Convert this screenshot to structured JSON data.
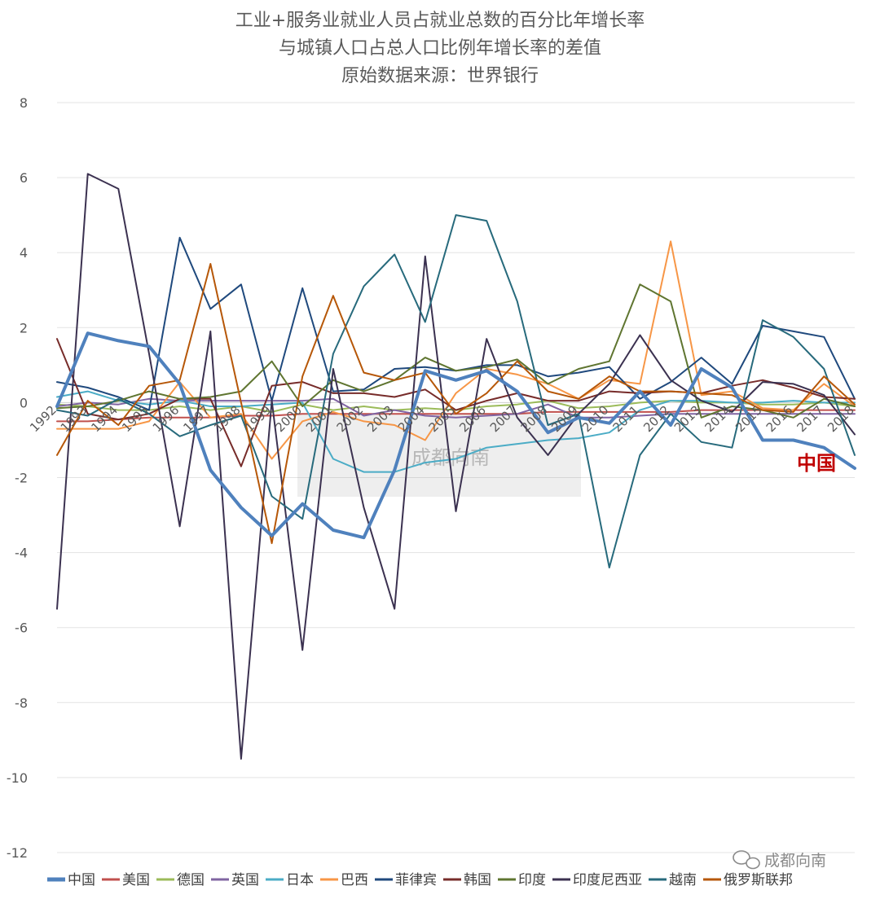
{
  "chart_data": {
    "type": "line",
    "title": [
      "工业+服务业就业人员占就业总数的百分比年增长率",
      "与城镇人口占总人口比例年增长率的差值",
      "原始数据来源：世界银行"
    ],
    "x": [
      "1992",
      "1993",
      "1994",
      "1995",
      "1996",
      "1997",
      "1998",
      "1999",
      "2000",
      "2001",
      "2002",
      "2003",
      "2004",
      "2005",
      "2006",
      "2007",
      "2008",
      "2009",
      "2010",
      "2011",
      "2012",
      "2013",
      "2014",
      "2015",
      "2016",
      "2017",
      "2018"
    ],
    "ylim": [
      -12,
      8
    ],
    "yticks": [
      -12,
      -10,
      -8,
      -6,
      -4,
      -2,
      0,
      2,
      4,
      6,
      8
    ],
    "grid": true,
    "legend_position": "bottom",
    "series": [
      {
        "name": "中国",
        "color": "#4f81bd",
        "width": 4,
        "values": [
          -0.1,
          1.85,
          1.65,
          1.5,
          0.5,
          -1.8,
          -2.8,
          -3.55,
          -2.7,
          -3.4,
          -3.6,
          -1.8,
          0.85,
          0.6,
          0.85,
          0.3,
          -0.8,
          -0.4,
          -0.55,
          0.3,
          -0.6,
          0.9,
          0.4,
          -1.0,
          -1.0,
          -1.2,
          -1.75
        ]
      },
      {
        "name": "美国",
        "color": "#c0504d",
        "width": 2,
        "values": [
          -0.5,
          -0.5,
          -0.45,
          -0.4,
          -0.4,
          -0.4,
          -0.35,
          -0.35,
          -0.3,
          -0.3,
          -0.3,
          -0.3,
          -0.3,
          -0.3,
          -0.3,
          -0.3,
          -0.25,
          -0.25,
          -0.25,
          -0.25,
          -0.25,
          -0.2,
          -0.2,
          -0.2,
          -0.2,
          -0.2,
          -0.2
        ]
      },
      {
        "name": "德国",
        "color": "#9bbb59",
        "width": 2,
        "values": [
          -0.05,
          -0.1,
          -0.2,
          -0.2,
          -0.1,
          -0.2,
          -0.1,
          -0.25,
          -0.05,
          -0.2,
          -0.1,
          -0.2,
          -0.15,
          -0.2,
          -0.1,
          -0.05,
          0.05,
          -0.15,
          -0.1,
          0.0,
          0.05,
          0.0,
          0.0,
          -0.05,
          -0.05,
          0.0,
          -0.1
        ]
      },
      {
        "name": "英国",
        "color": "#8064a2",
        "width": 2,
        "values": [
          -0.1,
          0.0,
          -0.05,
          0.1,
          0.05,
          0.05,
          0.05,
          0.05,
          0.05,
          0.1,
          -0.35,
          -0.2,
          -0.35,
          -0.4,
          -0.35,
          -0.3,
          -0.05,
          -0.4,
          -0.4,
          -0.35,
          -0.3,
          -0.3,
          -0.3,
          -0.3,
          -0.3,
          -0.3,
          -0.3
        ]
      },
      {
        "name": "日本",
        "color": "#4bacc6",
        "width": 2,
        "values": [
          0.15,
          0.3,
          0.05,
          -0.05,
          0.05,
          -0.1,
          -0.1,
          -0.05,
          0.0,
          -1.5,
          -1.85,
          -1.85,
          -1.6,
          -1.5,
          -1.2,
          -1.1,
          -1.0,
          -0.95,
          -0.8,
          -0.2,
          0.05,
          0.05,
          0.0,
          0.0,
          0.05,
          0.0,
          0.0
        ]
      },
      {
        "name": "巴西",
        "color": "#f79646",
        "width": 2,
        "values": [
          -0.7,
          -0.7,
          -0.7,
          -0.5,
          0.55,
          -0.4,
          -0.3,
          -1.5,
          -0.5,
          -0.25,
          -0.5,
          -0.6,
          -1.0,
          0.25,
          0.9,
          0.75,
          0.5,
          0.1,
          0.6,
          0.5,
          4.3,
          0.2,
          0.3,
          -0.15,
          -0.2,
          0.5,
          -0.1
        ]
      },
      {
        "name": "菲律宾",
        "color": "#1f497d",
        "width": 2,
        "values": [
          0.55,
          0.4,
          0.15,
          -0.2,
          4.4,
          2.5,
          3.15,
          0.05,
          3.05,
          0.3,
          0.35,
          0.9,
          0.95,
          0.85,
          1.0,
          1.0,
          0.7,
          0.8,
          0.95,
          0.1,
          0.55,
          1.2,
          0.5,
          2.05,
          1.9,
          1.75,
          0.1
        ]
      },
      {
        "name": "韩国",
        "color": "#772c2a",
        "width": 2,
        "values": [
          1.7,
          -0.3,
          -0.45,
          -0.3,
          0.1,
          0.1,
          -1.7,
          0.45,
          0.55,
          0.25,
          0.25,
          0.15,
          0.35,
          -0.2,
          0.05,
          0.25,
          0.05,
          0.05,
          0.3,
          0.25,
          0.3,
          0.25,
          0.45,
          0.6,
          0.4,
          0.15,
          0.1
        ]
      },
      {
        "name": "印度",
        "color": "#5f7530",
        "width": 2,
        "values": [
          -0.15,
          -0.1,
          0.05,
          0.3,
          0.1,
          0.15,
          0.3,
          1.1,
          -0.1,
          0.6,
          0.3,
          0.6,
          1.2,
          0.85,
          0.95,
          1.15,
          0.5,
          0.9,
          1.1,
          3.15,
          2.7,
          -0.4,
          -0.1,
          -0.2,
          -0.4,
          0.1,
          -0.1
        ]
      },
      {
        "name": "印度尼西亚",
        "color": "#3b3150",
        "width": 2,
        "values": [
          -5.5,
          6.1,
          5.7,
          1.3,
          -3.3,
          1.9,
          -9.5,
          0.05,
          -6.6,
          0.9,
          -2.8,
          -5.5,
          3.9,
          -2.9,
          1.7,
          -0.4,
          -1.4,
          -0.3,
          0.5,
          1.8,
          0.6,
          0.05,
          -0.25,
          0.55,
          0.5,
          0.2,
          -0.85
        ]
      },
      {
        "name": "越南",
        "color": "#276a7c",
        "width": 2,
        "values": [
          -0.2,
          -0.35,
          0.1,
          -0.3,
          -0.9,
          -0.6,
          -0.35,
          -2.5,
          -3.1,
          1.3,
          3.1,
          3.95,
          2.15,
          5.0,
          4.85,
          2.7,
          -0.6,
          -0.3,
          -4.4,
          -1.4,
          -0.3,
          -1.05,
          -1.2,
          2.2,
          1.75,
          0.9,
          -1.4
        ]
      },
      {
        "name": "俄罗斯联邦",
        "color": "#b65708",
        "width": 2,
        "values": [
          -1.4,
          0.05,
          -0.6,
          0.45,
          0.6,
          3.7,
          0.0,
          -3.75,
          0.7,
          2.85,
          0.8,
          0.6,
          0.8,
          -0.3,
          0.25,
          1.1,
          0.3,
          0.1,
          0.7,
          0.3,
          0.3,
          0.25,
          0.2,
          -0.2,
          -0.25,
          0.7,
          -0.05
        ]
      }
    ],
    "annotations": [
      {
        "text": "中国",
        "color": "#c00000"
      }
    ]
  },
  "watermark": {
    "text": "成都向南"
  },
  "credit": {
    "text": "成都向南"
  }
}
